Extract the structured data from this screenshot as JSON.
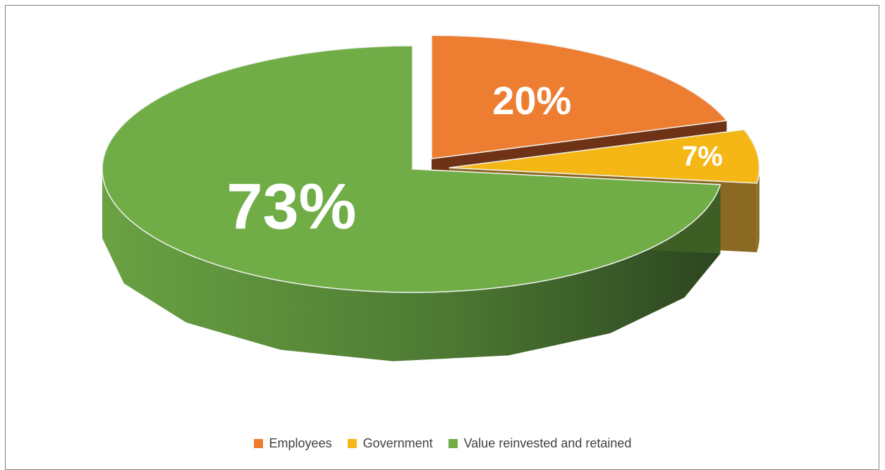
{
  "chart_data": {
    "type": "pie",
    "style": "3d-exploded",
    "categories": [
      "Employees",
      "Government",
      "Value reinvested and retained"
    ],
    "values": [
      20,
      7,
      73
    ],
    "data_labels": [
      "20%",
      "7%",
      "73%"
    ],
    "colors": [
      "#ed7d31",
      "#f5b716",
      "#70ad47"
    ],
    "side_colors": [
      "#6e3316",
      "#8a6a22",
      "#3d5f26"
    ],
    "legend_position": "bottom",
    "title": ""
  },
  "legend": {
    "items": [
      {
        "label": "Employees",
        "color": "#ed7d31"
      },
      {
        "label": "Government",
        "color": "#f5b716"
      },
      {
        "label": "Value reinvested and retained",
        "color": "#70ad47"
      }
    ]
  }
}
